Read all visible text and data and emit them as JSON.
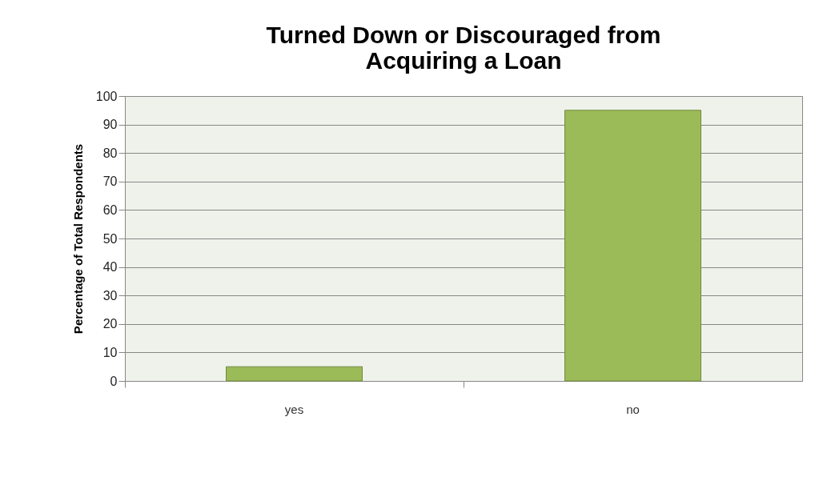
{
  "chart_data": {
    "type": "bar",
    "title": [
      "Turned Down or Discouraged from",
      "Acquiring a Loan"
    ],
    "ylabel": "Percentage of Total Respondents",
    "categories": [
      "yes",
      "no"
    ],
    "values": [
      5,
      95
    ],
    "color": "#9bbb59",
    "ylim": [
      0,
      100
    ],
    "yticks": [
      0,
      10,
      20,
      30,
      40,
      50,
      60,
      70,
      80,
      90,
      100
    ],
    "grid": "y"
  }
}
